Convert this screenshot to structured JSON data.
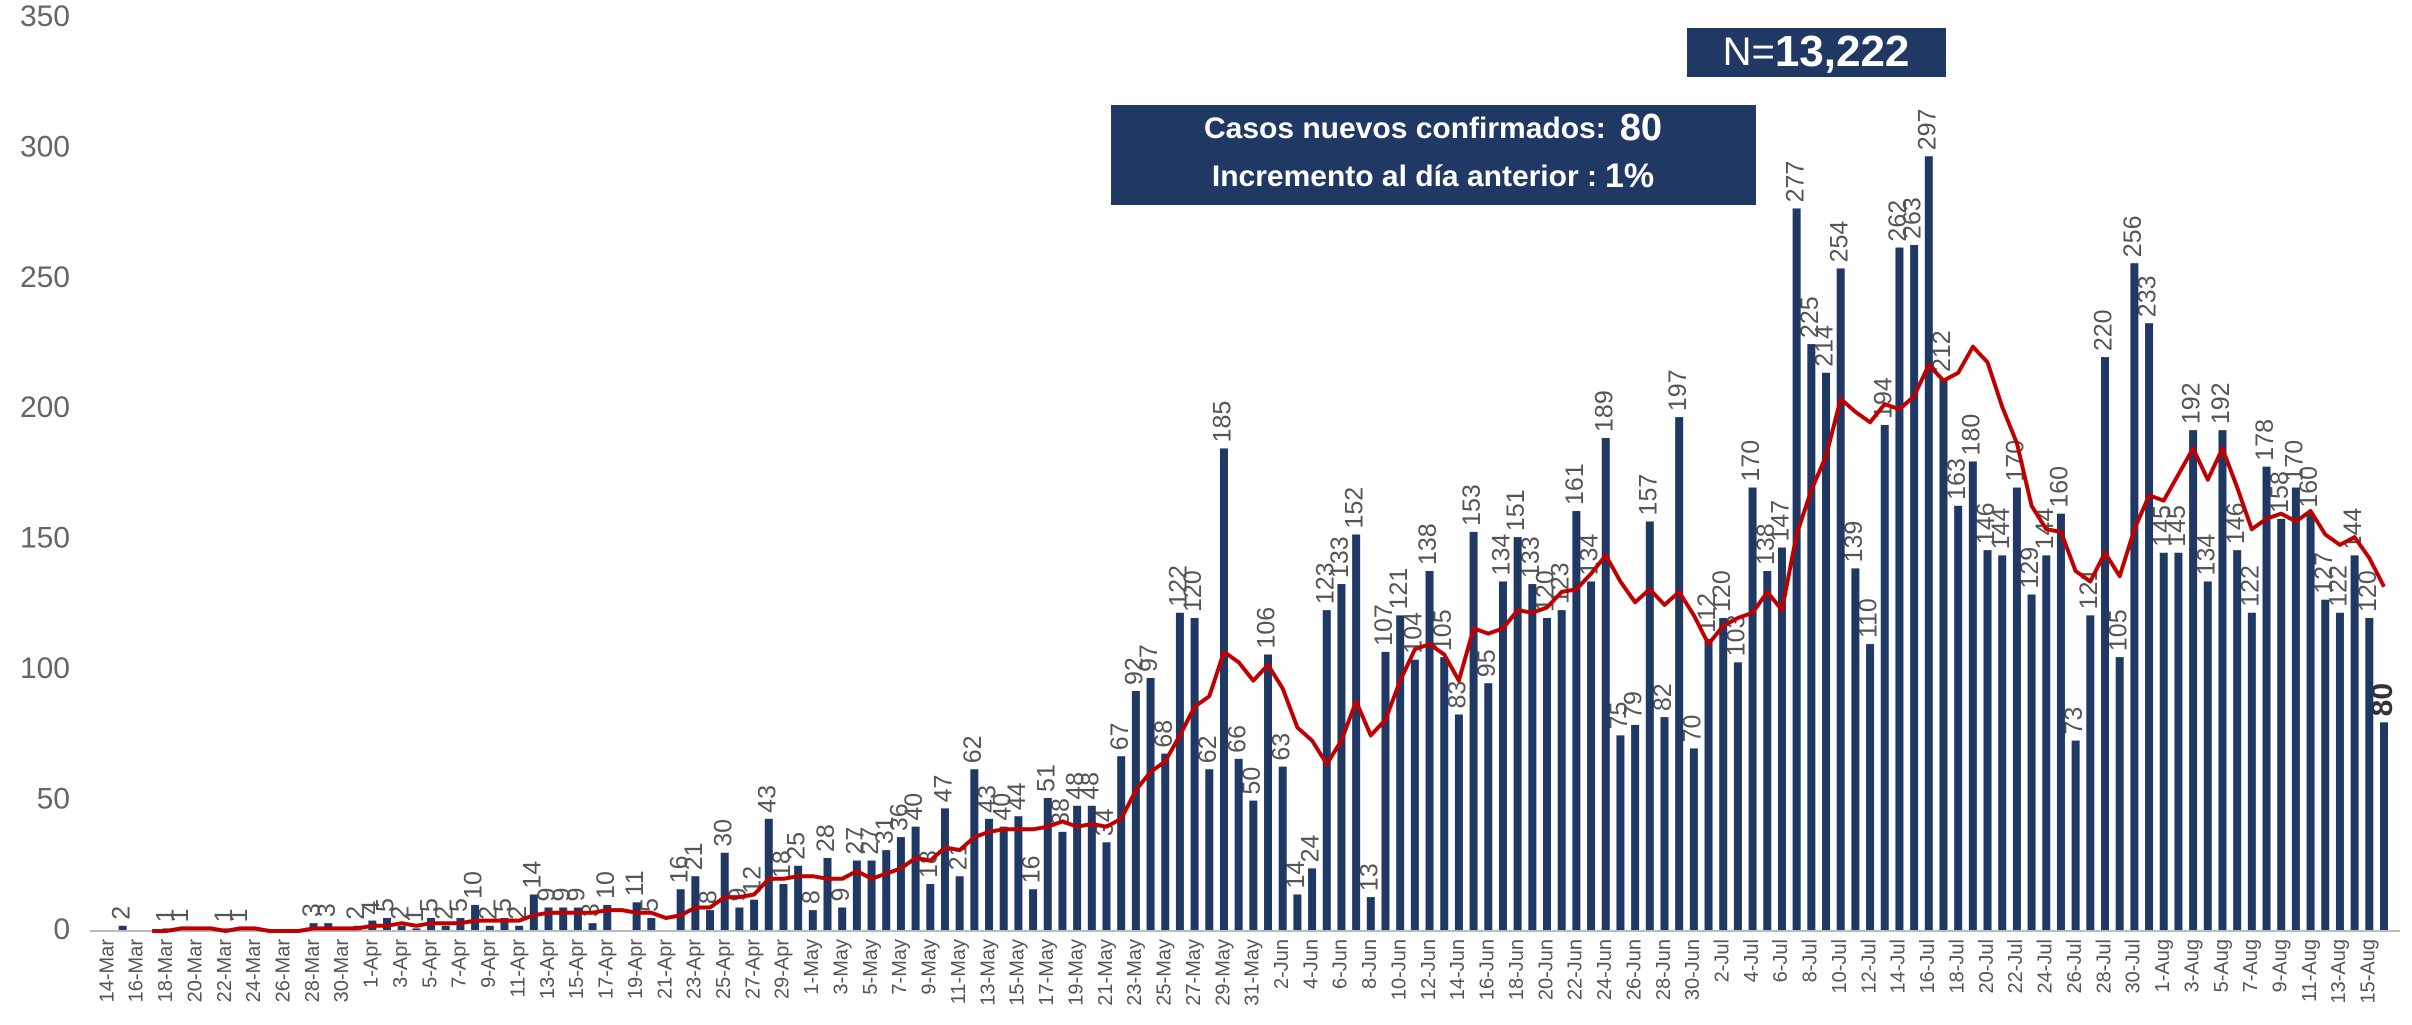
{
  "chart_data": {
    "type": "bar",
    "categories": [
      "14-Mar",
      null,
      "16-Mar",
      null,
      "18-Mar",
      null,
      "20-Mar",
      null,
      "22-Mar",
      null,
      "24-Mar",
      null,
      "26-Mar",
      null,
      "28-Mar",
      null,
      "30-Mar",
      null,
      "1-Apr",
      null,
      "3-Apr",
      null,
      "5-Apr",
      null,
      "7-Apr",
      null,
      "9-Apr",
      null,
      "11-Apr",
      null,
      "13-Apr",
      null,
      "15-Apr",
      null,
      "17-Apr",
      null,
      "19-Apr",
      null,
      "21-Apr",
      null,
      "23-Apr",
      null,
      "25-Apr",
      null,
      "27-Apr",
      null,
      "29-Apr",
      null,
      "1-May",
      null,
      "3-May",
      null,
      "5-May",
      null,
      "7-May",
      null,
      "9-May",
      null,
      "11-May",
      null,
      "13-May",
      null,
      "15-May",
      null,
      "17-May",
      null,
      "19-May",
      null,
      "21-May",
      null,
      "23-May",
      null,
      "25-May",
      null,
      "27-May",
      null,
      "29-May",
      null,
      "31-May",
      null,
      "2-Jun",
      null,
      "4-Jun",
      null,
      "6-Jun",
      null,
      "8-Jun",
      null,
      "10-Jun",
      null,
      "12-Jun",
      null,
      "14-Jun",
      null,
      "16-Jun",
      null,
      "18-Jun",
      null,
      "20-Jun",
      null,
      "22-Jun",
      null,
      "24-Jun",
      null,
      "26-Jun",
      null,
      "28-Jun",
      null,
      "30-Jun",
      null,
      "2-Jul",
      null,
      "4-Jul",
      null,
      "6-Jul",
      null,
      "8-Jul",
      null,
      "10-Jul",
      null,
      "12-Jul",
      null,
      "14-Jul",
      null,
      "16-Jul",
      null,
      "18-Jul",
      null,
      "20-Jul",
      null,
      "22-Jul",
      null,
      "24-Jul",
      null,
      "26-Jul",
      null,
      "28-Jul",
      null,
      "30-Jul",
      null,
      "1-Aug",
      null,
      "3-Aug",
      null,
      "5-Aug",
      null,
      "7-Aug",
      null,
      "9-Aug",
      null,
      "11-Aug",
      null,
      "13-Aug",
      null,
      "15-Aug",
      null
    ],
    "series": [
      {
        "type": "bar",
        "color": "#1f3864",
        "values": [
          0,
          2,
          0,
          0,
          1,
          1,
          0,
          0,
          1,
          1,
          0,
          0,
          0,
          0,
          3,
          3,
          0,
          2,
          4,
          5,
          2,
          1,
          5,
          2,
          5,
          10,
          2,
          5,
          2,
          14,
          9,
          9,
          9,
          3,
          10,
          0,
          11,
          5,
          0,
          16,
          21,
          8,
          30,
          9,
          12,
          43,
          18,
          25,
          8,
          28,
          9,
          27,
          27,
          31,
          36,
          40,
          18,
          47,
          21,
          62,
          43,
          40,
          44,
          16,
          51,
          38,
          48,
          48,
          34,
          67,
          92,
          97,
          68,
          122,
          120,
          62,
          185,
          66,
          50,
          106,
          63,
          14,
          24,
          123,
          133,
          152,
          13,
          107,
          121,
          104,
          138,
          105,
          83,
          153,
          95,
          134,
          151,
          133,
          120,
          123,
          161,
          134,
          189,
          75,
          79,
          157,
          82,
          197,
          70,
          112,
          120,
          103,
          170,
          138,
          147,
          277,
          225,
          214,
          254,
          139,
          110,
          194,
          262,
          263,
          297,
          212,
          163,
          180,
          146,
          144,
          170,
          129,
          144,
          160,
          73,
          121,
          220,
          105,
          256,
          233,
          145,
          145,
          192,
          134,
          192,
          146,
          122,
          178,
          158,
          170,
          160,
          127,
          122,
          144,
          120,
          80
        ]
      },
      {
        "type": "line",
        "color": "#c00000",
        "values": [
          null,
          null,
          null,
          0,
          0,
          1,
          1,
          1,
          0,
          1,
          1,
          0,
          0,
          0,
          1,
          1,
          1,
          1,
          2,
          2,
          3,
          2,
          3,
          3,
          3,
          4,
          4,
          4,
          4,
          6,
          7,
          7,
          7,
          7,
          8,
          8,
          7,
          7,
          5,
          6,
          9,
          9,
          13,
          13,
          14,
          20,
          20,
          21,
          21,
          20,
          20,
          23,
          20,
          22,
          24,
          28,
          27,
          32,
          31,
          36,
          38,
          39,
          39,
          39,
          40,
          42,
          40,
          41,
          40,
          43,
          54,
          61,
          65,
          75,
          86,
          90,
          107,
          103,
          96,
          102,
          93,
          78,
          73,
          64,
          73,
          88,
          75,
          81,
          96,
          108,
          110,
          106,
          96,
          116,
          114,
          116,
          123,
          122,
          124,
          130,
          131,
          137,
          144,
          134,
          126,
          131,
          125,
          130,
          121,
          110,
          117,
          120,
          122,
          130,
          123,
          152,
          169,
          182,
          204,
          199,
          195,
          202,
          200,
          205,
          217,
          211,
          214,
          224,
          218,
          201,
          187,
          163,
          154,
          153,
          138,
          134,
          145,
          136,
          154,
          167,
          165,
          175,
          185,
          173,
          185,
          170,
          154,
          158,
          160,
          157,
          161,
          152,
          148,
          151,
          143,
          132
        ]
      }
    ],
    "ylim": [
      0,
      350
    ],
    "yticks": [
      0,
      50,
      100,
      150,
      200,
      250,
      300,
      350
    ],
    "grid": false,
    "annotations": {
      "total_label": "N=",
      "total": "13,222",
      "new_cases_label": "Casos nuevos confirmados:",
      "new_cases": "80",
      "increase_label": "Incremento al día anterior :",
      "increase": "1%"
    }
  }
}
